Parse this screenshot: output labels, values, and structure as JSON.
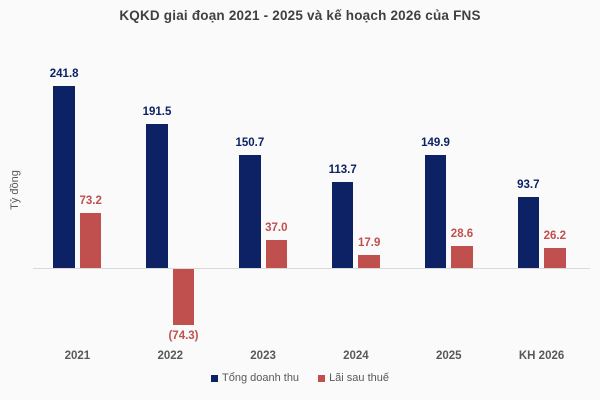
{
  "colors": {
    "background": "#fafafa",
    "title_text": "#404040",
    "axis_text": "#595959",
    "baseline": "#d9d9d9",
    "revenue_navy": "#0d2264",
    "profit_red": "#c0504d"
  },
  "chart_data": {
    "type": "bar",
    "title": "KQKD giai đoạn 2021 - 2025 và kế hoạch 2026 của FNS",
    "ylabel": "Tỷ đồng",
    "xlabel": "",
    "categories": [
      "2021",
      "2022",
      "2023",
      "2024",
      "2025",
      "KH 2026"
    ],
    "series": [
      {
        "name": "Tổng doanh thu",
        "key": "tong-doanh-thu",
        "color": "#0d2264",
        "values": [
          241.8,
          191.5,
          150.7,
          113.7,
          149.9,
          93.7
        ],
        "labels": [
          "241.8",
          "191.5",
          "150.7",
          "113.7",
          "149.9",
          "93.7"
        ]
      },
      {
        "name": "Lãi sau thuế",
        "key": "lai-sau-thue",
        "color": "#c0504d",
        "values": [
          73.2,
          -74.3,
          37.0,
          17.9,
          28.6,
          26.2
        ],
        "labels": [
          "73.2",
          "(74.3)",
          "37.0",
          "17.9",
          "28.6",
          "26.2"
        ]
      }
    ],
    "ylim": [
      -90,
      260
    ],
    "grid": false,
    "legend_position": "bottom"
  }
}
